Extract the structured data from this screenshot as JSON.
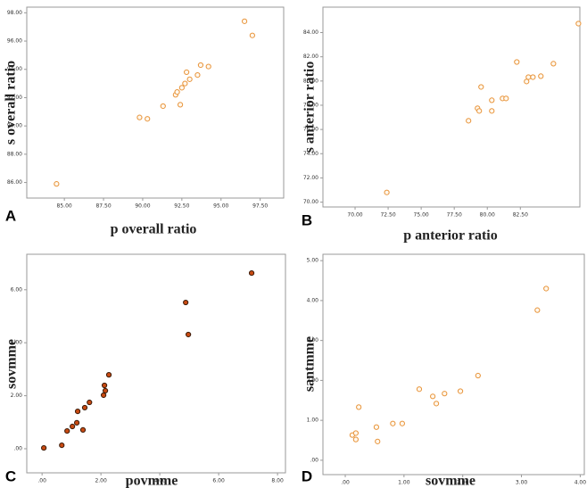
{
  "chart_data": [
    {
      "type": "scatter",
      "panel": "A",
      "x_label": "p overall ratio",
      "y_label": "s overall ratio",
      "x": [
        84.5,
        89.8,
        90.3,
        91.3,
        92.1,
        92.2,
        92.5,
        92.4,
        92.7,
        92.8,
        93.0,
        93.5,
        93.7,
        94.2,
        96.5,
        97.0
      ],
      "y": [
        85.9,
        90.6,
        90.5,
        91.4,
        92.2,
        92.4,
        92.7,
        91.5,
        93.0,
        93.8,
        93.3,
        93.6,
        94.3,
        94.2,
        97.4,
        96.4
      ],
      "color": "#e8943a",
      "marker_fill": "#fff8ee",
      "xlim": [
        82.6,
        99.0
      ],
      "ylim": [
        84.9,
        98.4
      ],
      "xticks": [
        {
          "value": 85,
          "label": "85.00"
        },
        {
          "value": 87.5,
          "label": "87.50"
        },
        {
          "value": 90,
          "label": "90.00"
        },
        {
          "value": 92.5,
          "label": "92.50"
        },
        {
          "value": 95,
          "label": "95.00"
        },
        {
          "value": 97.5,
          "label": "97.50"
        }
      ],
      "yticks": [
        {
          "value": 86,
          "label": "86.00"
        },
        {
          "value": 88,
          "label": "88.00"
        },
        {
          "value": 90,
          "label": "90.00"
        },
        {
          "value": 92,
          "label": "92.00"
        },
        {
          "value": 94,
          "label": "94.00"
        },
        {
          "value": 96,
          "label": "96.00"
        },
        {
          "value": 98,
          "label": "98.00"
        }
      ]
    },
    {
      "type": "scatter",
      "panel": "B",
      "x_label": "p anterior ratio",
      "y_label": "s anterior ratio",
      "x": [
        72.4,
        78.58,
        79.26,
        79.39,
        79.53,
        80.34,
        80.34,
        81.15,
        81.42,
        82.23,
        82.97,
        83.11,
        83.45,
        84.05,
        85.0,
        86.89
      ],
      "y": [
        70.8,
        76.72,
        77.75,
        77.53,
        79.51,
        78.41,
        77.53,
        78.56,
        78.56,
        81.57,
        79.96,
        80.32,
        80.32,
        80.4,
        81.43,
        84.74
      ],
      "color": "#e8943a",
      "marker_fill": "#fff8ee",
      "xlim": [
        67.57,
        87.0
      ],
      "ylim": [
        69.6,
        86.1
      ],
      "xticks": [
        {
          "value": 70,
          "label": "70.00"
        },
        {
          "value": 72.5,
          "label": "72.50"
        },
        {
          "value": 75,
          "label": "75.00"
        },
        {
          "value": 77.5,
          "label": "77.50"
        },
        {
          "value": 80,
          "label": "80.00"
        },
        {
          "value": 82.5,
          "label": "82.50"
        }
      ],
      "yticks": [
        {
          "value": 70,
          "label": "70.00"
        },
        {
          "value": 72,
          "label": "72.00"
        },
        {
          "value": 74,
          "label": "74.00"
        },
        {
          "value": 76,
          "label": "76.00"
        },
        {
          "value": 78,
          "label": "78.00"
        },
        {
          "value": 80,
          "label": "80.00"
        },
        {
          "value": 82,
          "label": "82.00"
        },
        {
          "value": 84,
          "label": "84.00"
        }
      ]
    },
    {
      "type": "scatter",
      "panel": "C",
      "x_label": "povmme",
      "y_label": "sovmme",
      "x": [
        0.06,
        0.67,
        0.85,
        1.03,
        1.18,
        1.21,
        1.39,
        1.45,
        1.61,
        2.09,
        2.15,
        2.12,
        2.27,
        4.88,
        4.97,
        7.12
      ],
      "y": [
        0.03,
        0.13,
        0.67,
        0.84,
        0.98,
        1.41,
        0.71,
        1.55,
        1.75,
        2.02,
        2.19,
        2.39,
        2.79,
        5.52,
        4.31,
        6.63
      ],
      "color": "#3a1a08",
      "marker_fill": "#c84a12",
      "xlim": [
        -0.52,
        8.27
      ],
      "ylim": [
        -0.91,
        7.34
      ],
      "xticks": [
        {
          "value": 0,
          "label": ".00"
        },
        {
          "value": 2,
          "label": "2.00"
        },
        {
          "value": 4,
          "label": "4.00"
        },
        {
          "value": 6,
          "label": "6.00"
        },
        {
          "value": 8,
          "label": "8.00"
        }
      ],
      "yticks": [
        {
          "value": 0,
          "label": ".00"
        },
        {
          "value": 2,
          "label": "2.00"
        },
        {
          "value": 4,
          "label": "4.00"
        },
        {
          "value": 6,
          "label": "6.00"
        }
      ]
    },
    {
      "type": "scatter",
      "panel": "D",
      "x_label": "sovmme",
      "y_label": "santmme",
      "x": [
        0.12,
        0.18,
        0.23,
        0.18,
        0.53,
        0.55,
        0.81,
        0.97,
        1.26,
        1.49,
        1.55,
        1.69,
        1.96,
        2.26,
        3.27,
        3.42
      ],
      "y": [
        0.63,
        0.68,
        1.33,
        0.52,
        0.83,
        0.47,
        0.92,
        0.92,
        1.78,
        1.6,
        1.42,
        1.67,
        1.73,
        2.12,
        3.76,
        4.3
      ],
      "color": "#e8943a",
      "marker_fill": "#fff8ee",
      "xlim": [
        -0.38,
        4.07
      ],
      "ylim": [
        -0.36,
        5.16
      ],
      "xticks": [
        {
          "value": 0,
          "label": ".00"
        },
        {
          "value": 1,
          "label": "1.00"
        },
        {
          "value": 2,
          "label": "2.00"
        },
        {
          "value": 3,
          "label": "3.00"
        },
        {
          "value": 4,
          "label": "4.00"
        }
      ],
      "yticks": [
        {
          "value": 0,
          "label": ".00"
        },
        {
          "value": 1,
          "label": "1.00"
        },
        {
          "value": 2,
          "label": "2.00"
        },
        {
          "value": 3,
          "label": "3.00"
        },
        {
          "value": 4,
          "label": "4.00"
        },
        {
          "value": 5,
          "label": "5.00"
        }
      ]
    }
  ]
}
